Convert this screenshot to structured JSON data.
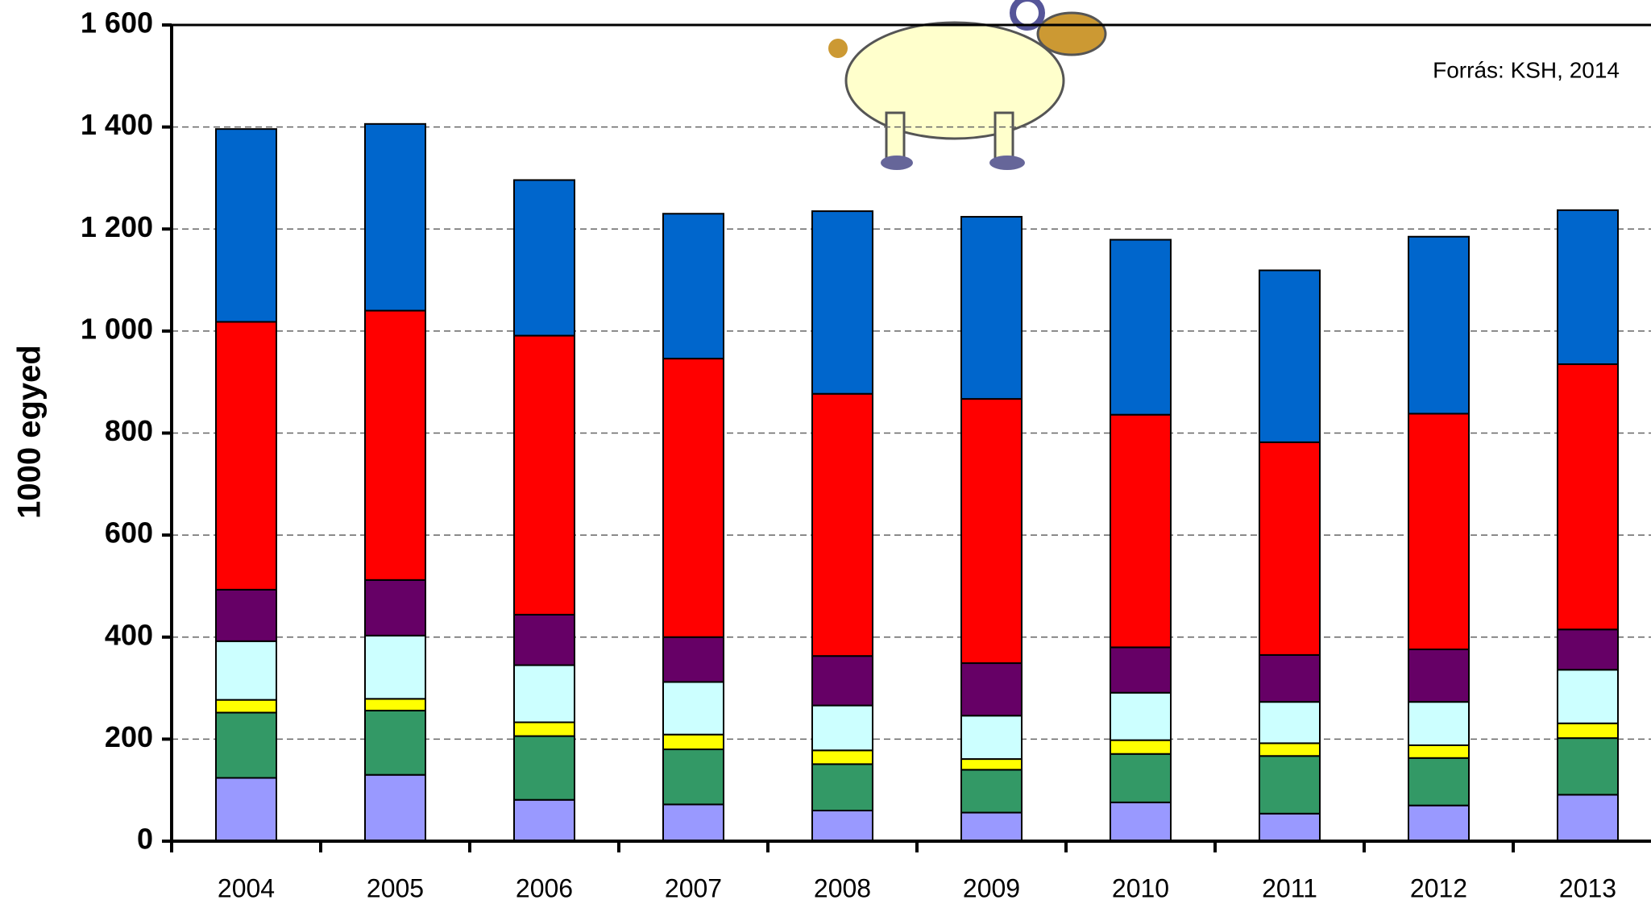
{
  "chart_data": {
    "type": "stacked_bar",
    "y_label": "1000 egyed",
    "source": "Forrás: KSH, 2014",
    "categories": [
      "2004",
      "2005",
      "2006",
      "2007",
      "2008",
      "2009",
      "2010",
      "2011",
      "2012",
      "2013"
    ],
    "series": [
      {
        "color": "#9999ff",
        "values": [
          124,
          130,
          81,
          72,
          60,
          56,
          76,
          54,
          70,
          91
        ]
      },
      {
        "color": "#339966",
        "values": [
          128,
          126,
          125,
          108,
          91,
          84,
          95,
          113,
          93,
          111
        ]
      },
      {
        "color": "#ffff00",
        "values": [
          25,
          23,
          27,
          29,
          27,
          21,
          27,
          25,
          25,
          29
        ]
      },
      {
        "color": "#ccffff",
        "values": [
          115,
          124,
          112,
          103,
          88,
          85,
          93,
          81,
          85,
          105
        ]
      },
      {
        "color": "#660066",
        "values": [
          101,
          109,
          99,
          88,
          97,
          103,
          89,
          92,
          103,
          79
        ]
      },
      {
        "color": "#ff0000",
        "values": [
          525,
          528,
          547,
          546,
          514,
          518,
          456,
          417,
          462,
          520
        ]
      },
      {
        "color": "#0066cc",
        "values": [
          378,
          366,
          305,
          284,
          358,
          357,
          343,
          337,
          347,
          302
        ]
      }
    ],
    "ylim": [
      0,
      1600
    ],
    "yticks": [
      0,
      200,
      400,
      600,
      800,
      {
        "value": 1000,
        "label": "1 000"
      },
      {
        "value": 1200,
        "label": "1 200"
      },
      {
        "value": 1400,
        "label": "1 400"
      },
      {
        "value": 1600,
        "label": "1 600"
      }
    ],
    "grid": true
  }
}
